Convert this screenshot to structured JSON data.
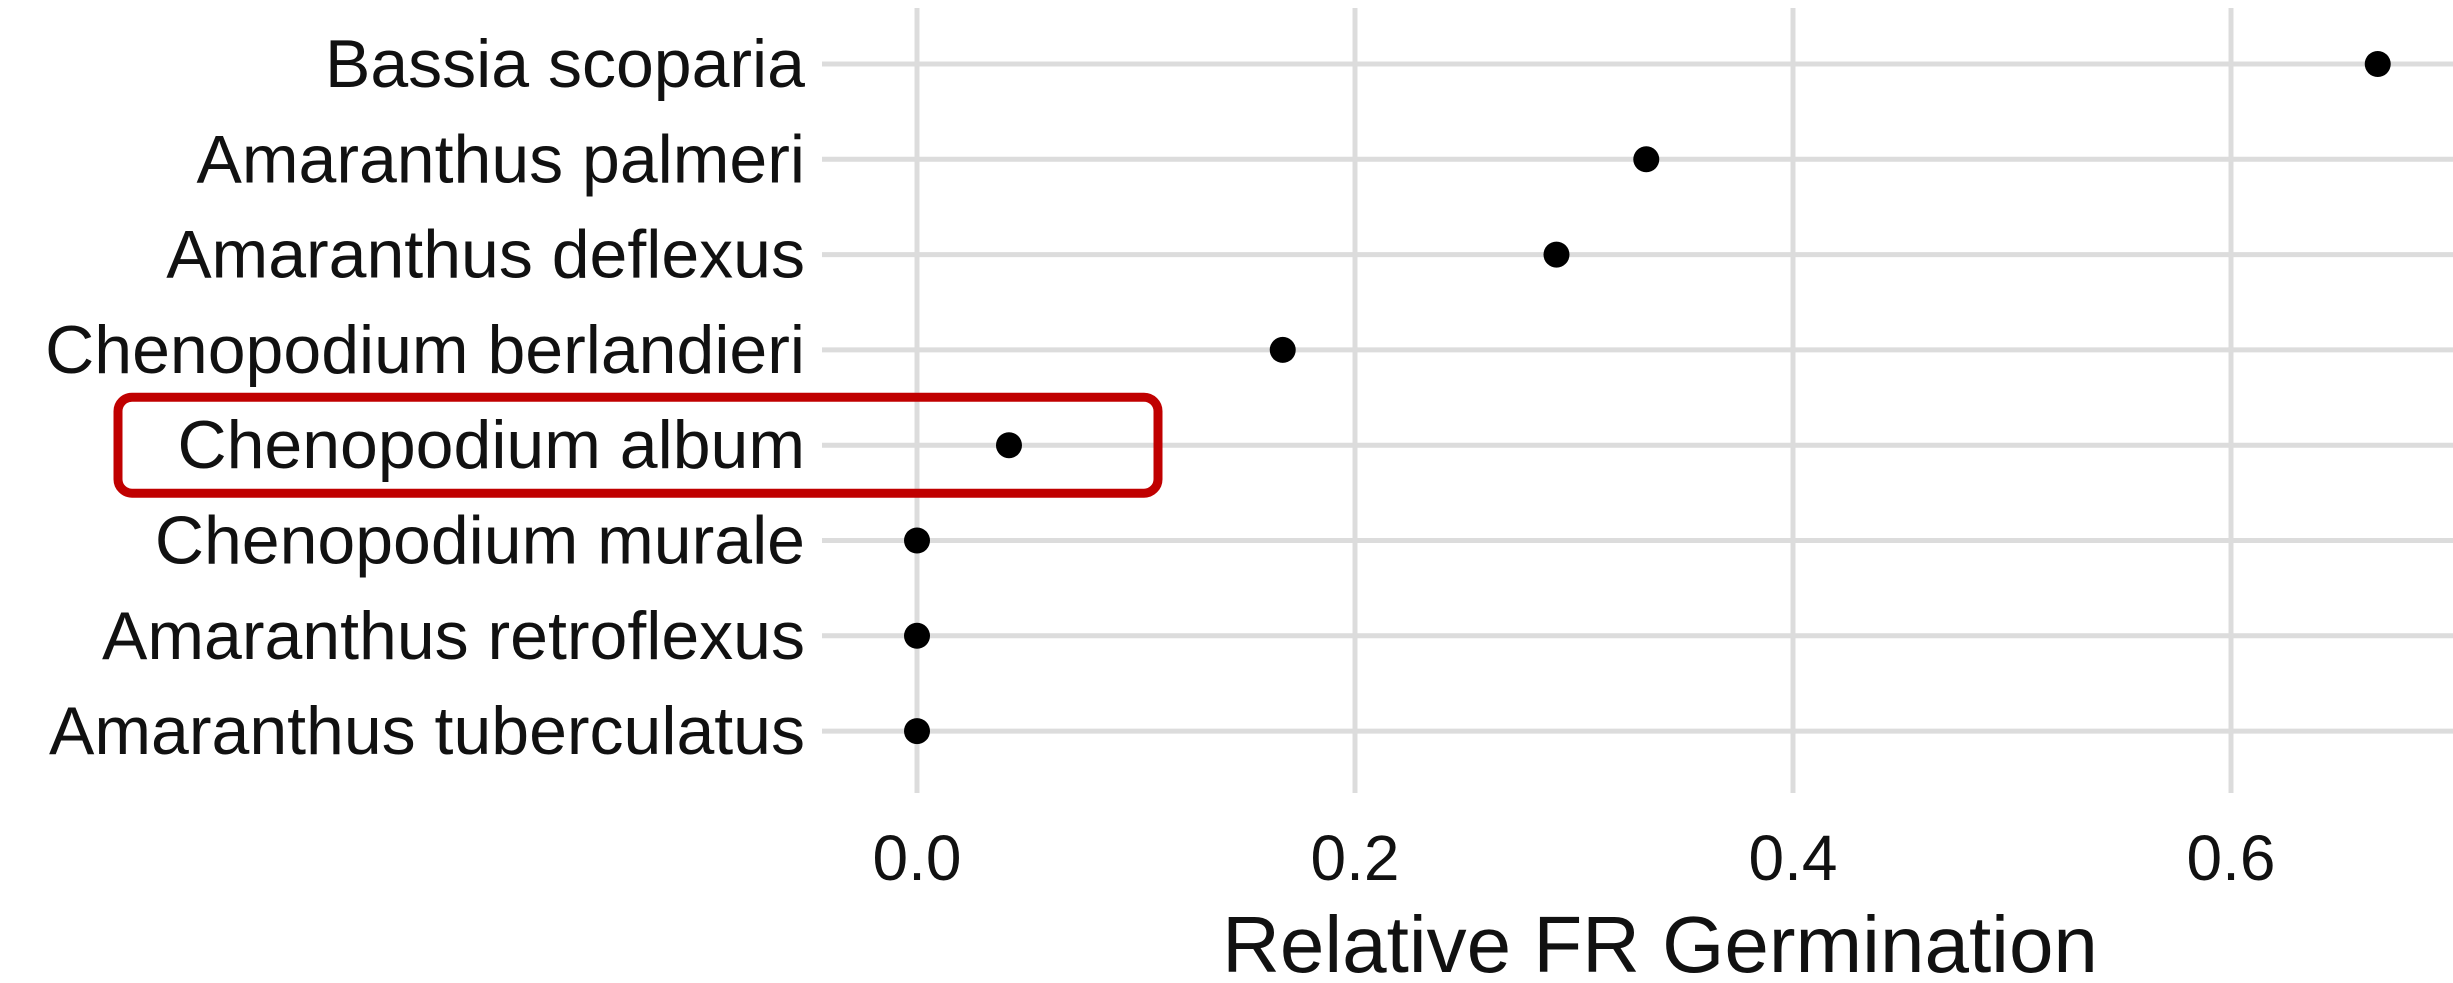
{
  "chart_data": {
    "type": "scatter",
    "xlabel": "Relative FR Germination",
    "ylabel": "",
    "xlim": [
      -0.13,
      0.7
    ],
    "x_ticks": [
      "0.0",
      "0.2",
      "0.4",
      "0.6"
    ],
    "x_tick_values": [
      0.0,
      0.2,
      0.4,
      0.6
    ],
    "grid": true,
    "categories": [
      "Bassia scoparia",
      "Amaranthus palmeri",
      "Amaranthus deflexus",
      "Chenopodium berlandieri",
      "Chenopodium album",
      "Chenopodium murale",
      "Amaranthus retroflexus",
      "Amaranthus tuberculatus"
    ],
    "values": [
      0.667,
      0.333,
      0.292,
      0.167,
      0.042,
      0.0,
      0.0,
      0.0
    ],
    "highlighted_category": "Chenopodium album",
    "colors": {
      "point": "#000000",
      "grid": "#dcdcdc",
      "highlight": "#c00000"
    }
  }
}
